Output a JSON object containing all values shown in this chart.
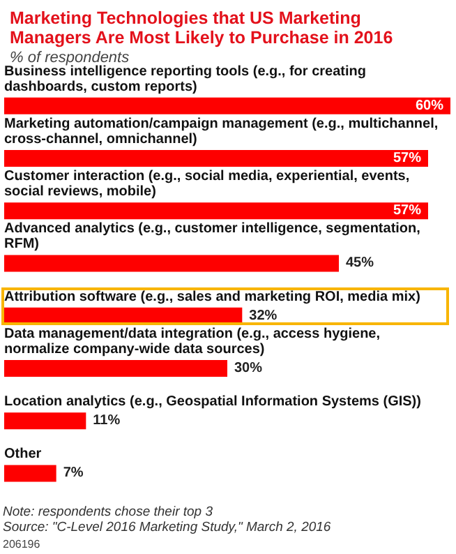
{
  "chart_data": {
    "type": "bar",
    "orientation": "horizontal",
    "title": "Marketing Technologies that US Marketing Managers Are Most Likely to Purchase in 2016",
    "subtitle": "% of respondents",
    "categories": [
      "Business intelligence reporting tools (e.g., for creating dashboards, custom reports)",
      "Marketing automation/campaign management (e.g., multichannel, cross-channel, omnichannel)",
      "Customer interaction (e.g., social media, experiential, events, social reviews, mobile)",
      "Advanced analytics (e.g., customer intelligence, segmentation, RFM)",
      "Attribution software (e.g., sales and marketing ROI, media mix)",
      "Data management/data integration (e.g., access hygiene, normalize company-wide data sources)",
      "Location analytics (e.g., Geospatial Information Systems (GIS))",
      "Other"
    ],
    "values": [
      60,
      57,
      57,
      45,
      32,
      30,
      11,
      7
    ],
    "value_labels": [
      "60%",
      "57%",
      "57%",
      "45%",
      "32%",
      "30%",
      "11%",
      "7%"
    ],
    "color": "#fe0000",
    "annotations": [
      "Note: respondents chose their top 3",
      "Source: \"C-Level 2016 Marketing Study,\" March 2, 2016",
      "206196"
    ]
  }
}
